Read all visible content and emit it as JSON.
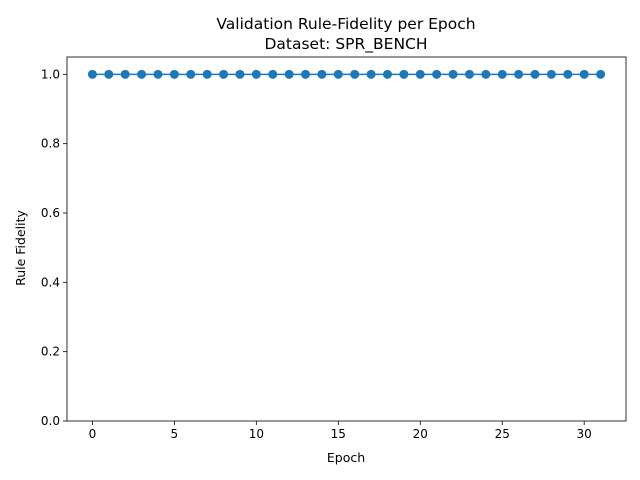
{
  "chart_data": {
    "type": "line",
    "title": "Validation Rule-Fidelity per Epoch",
    "subtitle": "Dataset: SPR_BENCH",
    "xlabel": "Epoch",
    "ylabel": "Rule Fidelity",
    "xlim": [
      -1.55,
      32.55
    ],
    "ylim": [
      0,
      1.05
    ],
    "xticks": [
      0,
      5,
      10,
      15,
      20,
      25,
      30
    ],
    "xtick_labels": [
      "0",
      "5",
      "10",
      "15",
      "20",
      "25",
      "30"
    ],
    "yticks": [
      0.0,
      0.2,
      0.4,
      0.6,
      0.8,
      1.0
    ],
    "ytick_labels": [
      "0.0",
      "0.2",
      "0.4",
      "0.6",
      "0.8",
      "1.0"
    ],
    "grid": false,
    "legend": "none",
    "series_color": "#1f77b4",
    "series": [
      {
        "x": [
          0,
          1,
          2,
          3,
          4,
          5,
          6,
          7,
          8,
          9,
          10,
          11,
          12,
          13,
          14,
          15,
          16,
          17,
          18,
          19,
          20,
          21,
          22,
          23,
          24,
          25,
          26,
          27,
          28,
          29,
          30,
          31
        ],
        "values": [
          1,
          1,
          1,
          1,
          1,
          1,
          1,
          1,
          1,
          1,
          1,
          1,
          1,
          1,
          1,
          1,
          1,
          1,
          1,
          1,
          1,
          1,
          1,
          1,
          1,
          1,
          1,
          1,
          1,
          1,
          1,
          1
        ]
      }
    ]
  }
}
